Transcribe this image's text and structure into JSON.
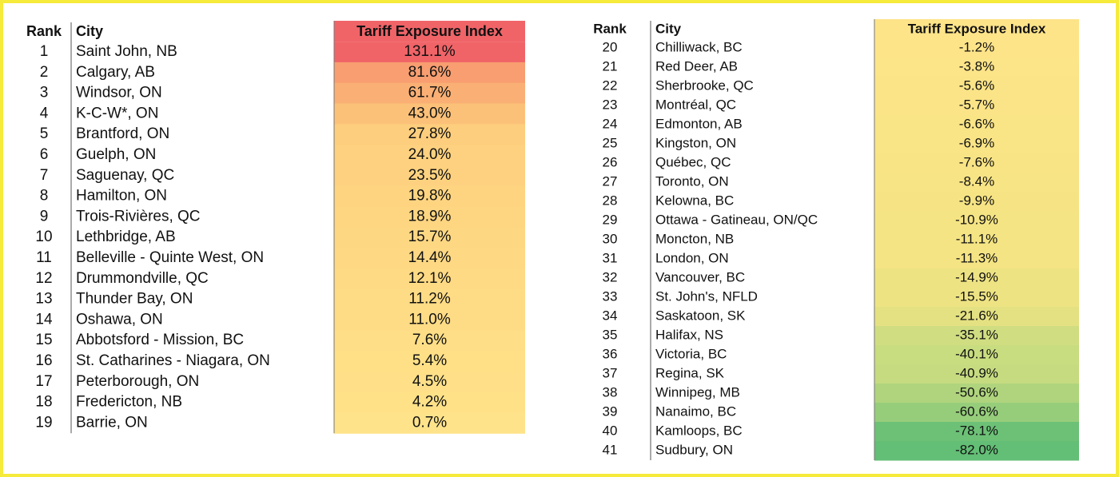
{
  "tables": [
    {
      "headers": [
        "Rank",
        "City",
        "Tariff Exposure Index"
      ],
      "rows": [
        [
          1,
          "Saint John, NB",
          "131.1%"
        ],
        [
          2,
          "Calgary, AB",
          "81.6%"
        ],
        [
          3,
          "Windsor, ON",
          "61.7%"
        ],
        [
          4,
          "K-C-W*, ON",
          "43.0%"
        ],
        [
          5,
          "Brantford, ON",
          "27.8%"
        ],
        [
          6,
          "Guelph, ON",
          "24.0%"
        ],
        [
          7,
          "Saguenay, QC",
          "23.5%"
        ],
        [
          8,
          "Hamilton, ON",
          "19.8%"
        ],
        [
          9,
          "Trois-Rivières, QC",
          "18.9%"
        ],
        [
          10,
          "Lethbridge, AB",
          "15.7%"
        ],
        [
          11,
          "Belleville - Quinte West, ON",
          "14.4%"
        ],
        [
          12,
          "Drummondville, QC",
          "12.1%"
        ],
        [
          13,
          "Thunder Bay, ON",
          "11.2%"
        ],
        [
          14,
          "Oshawa, ON",
          "11.0%"
        ],
        [
          15,
          "Abbotsford - Mission, BC",
          "7.6%"
        ],
        [
          16,
          "St. Catharines - Niagara, ON",
          "5.4%"
        ],
        [
          17,
          "Peterborough, ON",
          "4.5%"
        ],
        [
          18,
          "Fredericton, NB",
          "4.2%"
        ],
        [
          19,
          "Barrie, ON",
          "0.7%"
        ]
      ]
    },
    {
      "headers": [
        "Rank",
        "City",
        "Tariff Exposure Index"
      ],
      "rows": [
        [
          20,
          "Chilliwack, BC",
          "-1.2%"
        ],
        [
          21,
          "Red Deer, AB",
          "-3.8%"
        ],
        [
          22,
          "Sherbrooke, QC",
          "-5.6%"
        ],
        [
          23,
          "Montréal, QC",
          "-5.7%"
        ],
        [
          24,
          "Edmonton, AB",
          "-6.6%"
        ],
        [
          25,
          "Kingston, ON",
          "-6.9%"
        ],
        [
          26,
          "Québec, QC",
          "-7.6%"
        ],
        [
          27,
          "Toronto, ON",
          "-8.4%"
        ],
        [
          28,
          "Kelowna, BC",
          "-9.9%"
        ],
        [
          29,
          "Ottawa - Gatineau, ON/QC",
          "-10.9%"
        ],
        [
          30,
          "Moncton, NB",
          "-11.1%"
        ],
        [
          31,
          "London, ON",
          "-11.3%"
        ],
        [
          32,
          "Vancouver, BC",
          "-14.9%"
        ],
        [
          33,
          "St. John's, NFLD",
          "-15.5%"
        ],
        [
          34,
          "Saskatoon, SK",
          "-21.6%"
        ],
        [
          35,
          "Halifax, NS",
          "-35.1%"
        ],
        [
          36,
          "Victoria, BC",
          "-40.1%"
        ],
        [
          37,
          "Regina, SK",
          "-40.9%"
        ],
        [
          38,
          "Winnipeg, MB",
          "-50.6%"
        ],
        [
          39,
          "Nanaimo, BC",
          "-60.6%"
        ],
        [
          40,
          "Kamloops, BC",
          "-78.1%"
        ],
        [
          41,
          "Sudbury, ON",
          "-82.0%"
        ]
      ]
    }
  ]
}
